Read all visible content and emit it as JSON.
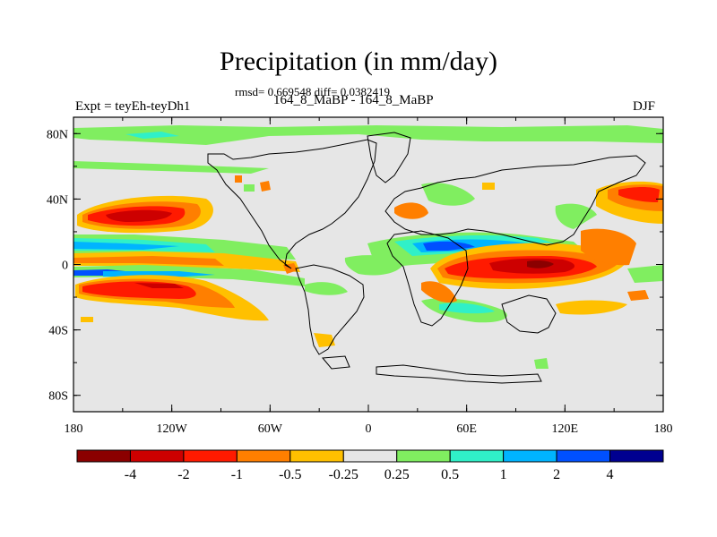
{
  "title": "Precipitation (in mm/day)",
  "stats": "rmsd= 0.669548 diff= 0.0382419",
  "left_label": "Expt = teyEh-teyDh1",
  "center_label": "164_8_MaBP - 164_8_MaBP",
  "right_label": "DJF",
  "lat_labels": [
    "80N",
    "40N",
    "0",
    "40S",
    "80S"
  ],
  "lon_labels": [
    "180",
    "120W",
    "60W",
    "0",
    "60E",
    "120E",
    "180"
  ],
  "colorbar": {
    "colors": [
      "#8b0000",
      "#cd0000",
      "#ff1a00",
      "#ff7f00",
      "#ffc000",
      "#e6e6e6",
      "#80ee60",
      "#30f0c8",
      "#00b4ff",
      "#0050ff",
      "#000090"
    ],
    "labels": [
      "-4",
      "-2",
      "-1",
      "-0.5",
      "-0.25",
      "0.25",
      "0.5",
      "1",
      "2",
      "4"
    ]
  },
  "field_colors": {
    "neutral": "#e6e6e6",
    "dry_strong": "#8b0000",
    "dry": "#cd0000",
    "dry_mid": "#ff1a00",
    "dry_weak": "#ff7f00",
    "dry_slight": "#ffc000",
    "wet_slight": "#80ee60",
    "wet_weak": "#30f0c8",
    "wet_mid": "#00b4ff",
    "wet": "#0050ff"
  }
}
